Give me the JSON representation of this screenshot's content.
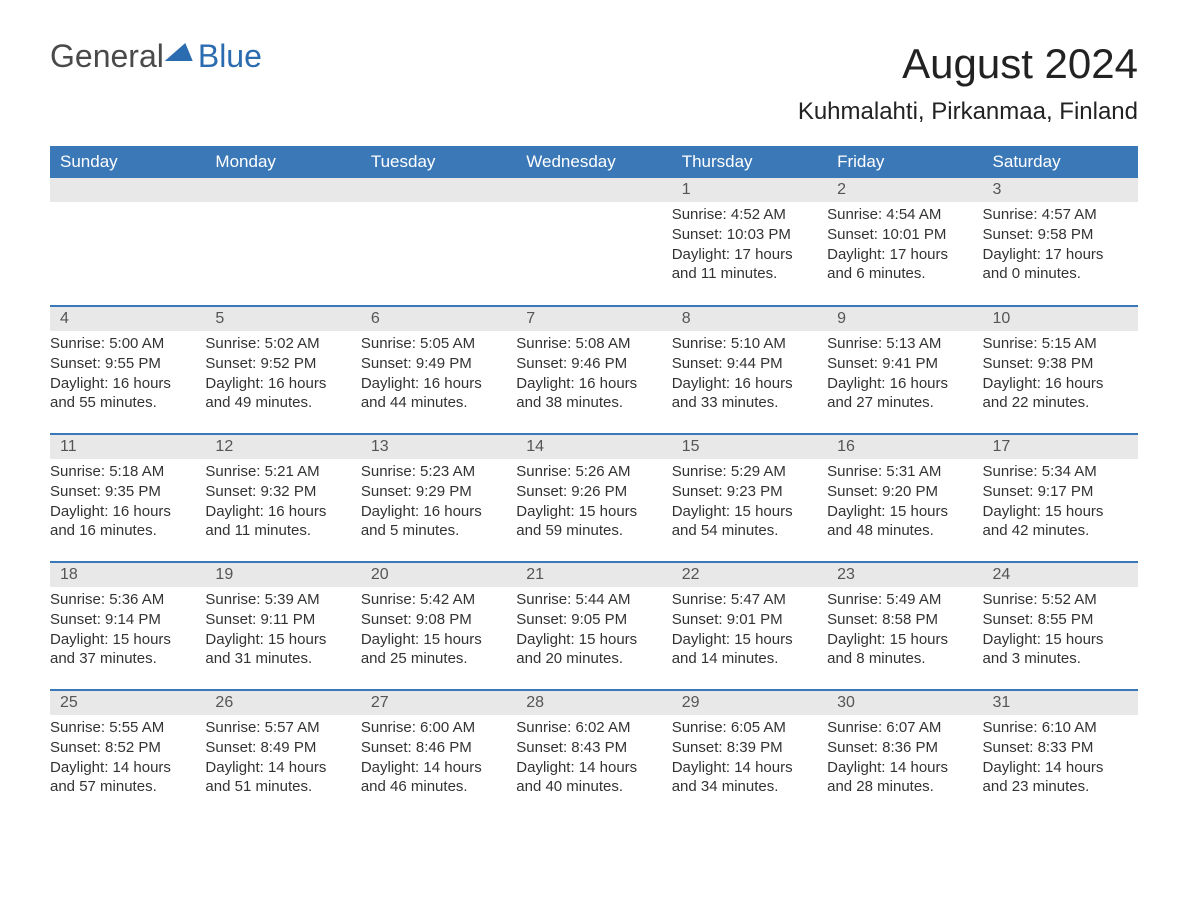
{
  "logo": {
    "part1": "General",
    "part2": "Blue"
  },
  "title": {
    "month": "August 2024",
    "location": "Kuhmalahti, Pirkanmaa, Finland"
  },
  "colors": {
    "header_bg": "#3b78b8",
    "header_text": "#ffffff",
    "daynum_bg": "#e8e8e8",
    "daynum_text": "#555555",
    "body_text": "#333333",
    "week_border": "#3b78b8",
    "logo_gray": "#4a4a4a",
    "logo_blue": "#2b6cb0",
    "page_bg": "#ffffff"
  },
  "fonts": {
    "family": "Arial",
    "title_month_pt": 42,
    "title_loc_pt": 24,
    "day_header_pt": 17,
    "daynum_pt": 16,
    "body_pt": 15
  },
  "dayHeaders": [
    "Sunday",
    "Monday",
    "Tuesday",
    "Wednesday",
    "Thursday",
    "Friday",
    "Saturday"
  ],
  "weeks": [
    [
      null,
      null,
      null,
      null,
      {
        "n": "1",
        "sr": "Sunrise: 4:52 AM",
        "ss": "Sunset: 10:03 PM",
        "dl1": "Daylight: 17 hours",
        "dl2": "and 11 minutes."
      },
      {
        "n": "2",
        "sr": "Sunrise: 4:54 AM",
        "ss": "Sunset: 10:01 PM",
        "dl1": "Daylight: 17 hours",
        "dl2": "and 6 minutes."
      },
      {
        "n": "3",
        "sr": "Sunrise: 4:57 AM",
        "ss": "Sunset: 9:58 PM",
        "dl1": "Daylight: 17 hours",
        "dl2": "and 0 minutes."
      }
    ],
    [
      {
        "n": "4",
        "sr": "Sunrise: 5:00 AM",
        "ss": "Sunset: 9:55 PM",
        "dl1": "Daylight: 16 hours",
        "dl2": "and 55 minutes."
      },
      {
        "n": "5",
        "sr": "Sunrise: 5:02 AM",
        "ss": "Sunset: 9:52 PM",
        "dl1": "Daylight: 16 hours",
        "dl2": "and 49 minutes."
      },
      {
        "n": "6",
        "sr": "Sunrise: 5:05 AM",
        "ss": "Sunset: 9:49 PM",
        "dl1": "Daylight: 16 hours",
        "dl2": "and 44 minutes."
      },
      {
        "n": "7",
        "sr": "Sunrise: 5:08 AM",
        "ss": "Sunset: 9:46 PM",
        "dl1": "Daylight: 16 hours",
        "dl2": "and 38 minutes."
      },
      {
        "n": "8",
        "sr": "Sunrise: 5:10 AM",
        "ss": "Sunset: 9:44 PM",
        "dl1": "Daylight: 16 hours",
        "dl2": "and 33 minutes."
      },
      {
        "n": "9",
        "sr": "Sunrise: 5:13 AM",
        "ss": "Sunset: 9:41 PM",
        "dl1": "Daylight: 16 hours",
        "dl2": "and 27 minutes."
      },
      {
        "n": "10",
        "sr": "Sunrise: 5:15 AM",
        "ss": "Sunset: 9:38 PM",
        "dl1": "Daylight: 16 hours",
        "dl2": "and 22 minutes."
      }
    ],
    [
      {
        "n": "11",
        "sr": "Sunrise: 5:18 AM",
        "ss": "Sunset: 9:35 PM",
        "dl1": "Daylight: 16 hours",
        "dl2": "and 16 minutes."
      },
      {
        "n": "12",
        "sr": "Sunrise: 5:21 AM",
        "ss": "Sunset: 9:32 PM",
        "dl1": "Daylight: 16 hours",
        "dl2": "and 11 minutes."
      },
      {
        "n": "13",
        "sr": "Sunrise: 5:23 AM",
        "ss": "Sunset: 9:29 PM",
        "dl1": "Daylight: 16 hours",
        "dl2": "and 5 minutes."
      },
      {
        "n": "14",
        "sr": "Sunrise: 5:26 AM",
        "ss": "Sunset: 9:26 PM",
        "dl1": "Daylight: 15 hours",
        "dl2": "and 59 minutes."
      },
      {
        "n": "15",
        "sr": "Sunrise: 5:29 AM",
        "ss": "Sunset: 9:23 PM",
        "dl1": "Daylight: 15 hours",
        "dl2": "and 54 minutes."
      },
      {
        "n": "16",
        "sr": "Sunrise: 5:31 AM",
        "ss": "Sunset: 9:20 PM",
        "dl1": "Daylight: 15 hours",
        "dl2": "and 48 minutes."
      },
      {
        "n": "17",
        "sr": "Sunrise: 5:34 AM",
        "ss": "Sunset: 9:17 PM",
        "dl1": "Daylight: 15 hours",
        "dl2": "and 42 minutes."
      }
    ],
    [
      {
        "n": "18",
        "sr": "Sunrise: 5:36 AM",
        "ss": "Sunset: 9:14 PM",
        "dl1": "Daylight: 15 hours",
        "dl2": "and 37 minutes."
      },
      {
        "n": "19",
        "sr": "Sunrise: 5:39 AM",
        "ss": "Sunset: 9:11 PM",
        "dl1": "Daylight: 15 hours",
        "dl2": "and 31 minutes."
      },
      {
        "n": "20",
        "sr": "Sunrise: 5:42 AM",
        "ss": "Sunset: 9:08 PM",
        "dl1": "Daylight: 15 hours",
        "dl2": "and 25 minutes."
      },
      {
        "n": "21",
        "sr": "Sunrise: 5:44 AM",
        "ss": "Sunset: 9:05 PM",
        "dl1": "Daylight: 15 hours",
        "dl2": "and 20 minutes."
      },
      {
        "n": "22",
        "sr": "Sunrise: 5:47 AM",
        "ss": "Sunset: 9:01 PM",
        "dl1": "Daylight: 15 hours",
        "dl2": "and 14 minutes."
      },
      {
        "n": "23",
        "sr": "Sunrise: 5:49 AM",
        "ss": "Sunset: 8:58 PM",
        "dl1": "Daylight: 15 hours",
        "dl2": "and 8 minutes."
      },
      {
        "n": "24",
        "sr": "Sunrise: 5:52 AM",
        "ss": "Sunset: 8:55 PM",
        "dl1": "Daylight: 15 hours",
        "dl2": "and 3 minutes."
      }
    ],
    [
      {
        "n": "25",
        "sr": "Sunrise: 5:55 AM",
        "ss": "Sunset: 8:52 PM",
        "dl1": "Daylight: 14 hours",
        "dl2": "and 57 minutes."
      },
      {
        "n": "26",
        "sr": "Sunrise: 5:57 AM",
        "ss": "Sunset: 8:49 PM",
        "dl1": "Daylight: 14 hours",
        "dl2": "and 51 minutes."
      },
      {
        "n": "27",
        "sr": "Sunrise: 6:00 AM",
        "ss": "Sunset: 8:46 PM",
        "dl1": "Daylight: 14 hours",
        "dl2": "and 46 minutes."
      },
      {
        "n": "28",
        "sr": "Sunrise: 6:02 AM",
        "ss": "Sunset: 8:43 PM",
        "dl1": "Daylight: 14 hours",
        "dl2": "and 40 minutes."
      },
      {
        "n": "29",
        "sr": "Sunrise: 6:05 AM",
        "ss": "Sunset: 8:39 PM",
        "dl1": "Daylight: 14 hours",
        "dl2": "and 34 minutes."
      },
      {
        "n": "30",
        "sr": "Sunrise: 6:07 AM",
        "ss": "Sunset: 8:36 PM",
        "dl1": "Daylight: 14 hours",
        "dl2": "and 28 minutes."
      },
      {
        "n": "31",
        "sr": "Sunrise: 6:10 AM",
        "ss": "Sunset: 8:33 PM",
        "dl1": "Daylight: 14 hours",
        "dl2": "and 23 minutes."
      }
    ]
  ]
}
